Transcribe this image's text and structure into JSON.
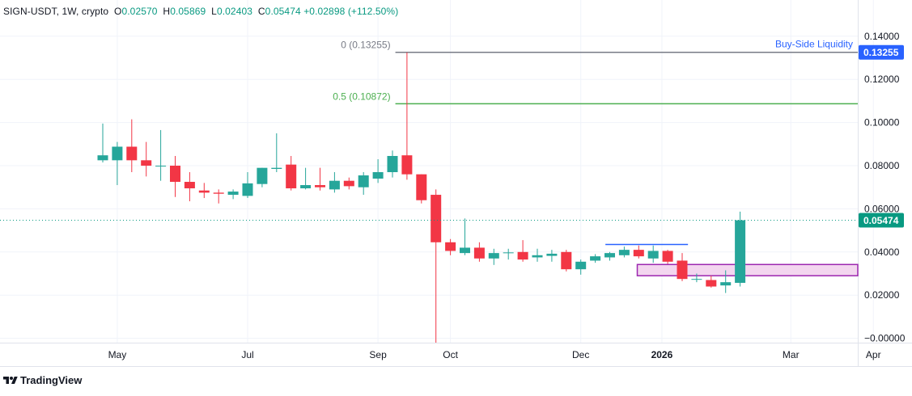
{
  "chart_data": {
    "type": "candlestick",
    "symbol": "SIGN-USDT",
    "interval": "1W",
    "source": "crypto",
    "ohlc_header": {
      "open_label": "O",
      "open": "0.02570",
      "high_label": "H",
      "high": "0.05869",
      "low_label": "L",
      "low": "0.02403",
      "close_label": "C",
      "close": "0.05474",
      "change": "+0.02898",
      "change_pct": "(+112.50%)"
    },
    "y_axis": {
      "ylim": [
        -0.009,
        0.142
      ],
      "ticks": [
        "0.14000",
        "0.12000",
        "0.10000",
        "0.08000",
        "0.06000",
        "0.04000",
        "0.02000",
        "−0.00000"
      ],
      "tick_values": [
        0.14,
        0.12,
        0.1,
        0.08,
        0.06,
        0.04,
        0.02,
        0.0
      ]
    },
    "x_axis": {
      "ticks": [
        {
          "label": "May",
          "week": 1,
          "bold": false
        },
        {
          "label": "Jul",
          "week": 10,
          "bold": false
        },
        {
          "label": "Sep",
          "week": 19,
          "bold": false
        },
        {
          "label": "Oct",
          "week": 24,
          "bold": false
        },
        {
          "label": "Dec",
          "week": 33,
          "bold": false
        },
        {
          "label": "2026",
          "week": 38.6,
          "bold": true
        },
        {
          "label": "Mar",
          "week": 47.5,
          "bold": false
        },
        {
          "label": "Apr",
          "week": 53.2,
          "bold": false
        }
      ]
    },
    "candles": [
      {
        "o": 0.0825,
        "h": 0.0995,
        "l": 0.0815,
        "c": 0.0848
      },
      {
        "o": 0.0825,
        "h": 0.091,
        "l": 0.071,
        "c": 0.0888
      },
      {
        "o": 0.0888,
        "h": 0.1015,
        "l": 0.077,
        "c": 0.0825
      },
      {
        "o": 0.0825,
        "h": 0.091,
        "l": 0.075,
        "c": 0.08
      },
      {
        "o": 0.08,
        "h": 0.0965,
        "l": 0.073,
        "c": 0.08
      },
      {
        "o": 0.08,
        "h": 0.0845,
        "l": 0.0655,
        "c": 0.0725
      },
      {
        "o": 0.0725,
        "h": 0.077,
        "l": 0.0635,
        "c": 0.0695
      },
      {
        "o": 0.0685,
        "h": 0.072,
        "l": 0.065,
        "c": 0.0675
      },
      {
        "o": 0.0675,
        "h": 0.069,
        "l": 0.0625,
        "c": 0.067
      },
      {
        "o": 0.0665,
        "h": 0.069,
        "l": 0.0645,
        "c": 0.068
      },
      {
        "o": 0.066,
        "h": 0.077,
        "l": 0.065,
        "c": 0.0718
      },
      {
        "o": 0.0715,
        "h": 0.079,
        "l": 0.07,
        "c": 0.079
      },
      {
        "o": 0.0785,
        "h": 0.095,
        "l": 0.077,
        "c": 0.079
      },
      {
        "o": 0.0805,
        "h": 0.0845,
        "l": 0.0685,
        "c": 0.0695
      },
      {
        "o": 0.0695,
        "h": 0.079,
        "l": 0.069,
        "c": 0.071
      },
      {
        "o": 0.071,
        "h": 0.079,
        "l": 0.0685,
        "c": 0.07
      },
      {
        "o": 0.069,
        "h": 0.077,
        "l": 0.0675,
        "c": 0.073
      },
      {
        "o": 0.073,
        "h": 0.0745,
        "l": 0.069,
        "c": 0.0705
      },
      {
        "o": 0.07,
        "h": 0.077,
        "l": 0.0665,
        "c": 0.0755
      },
      {
        "o": 0.074,
        "h": 0.083,
        "l": 0.072,
        "c": 0.077
      },
      {
        "o": 0.077,
        "h": 0.087,
        "l": 0.0745,
        "c": 0.0845
      },
      {
        "o": 0.0848,
        "h": 0.1325,
        "l": 0.0735,
        "c": 0.076
      },
      {
        "o": 0.076,
        "h": 0.076,
        "l": 0.0625,
        "c": 0.064
      },
      {
        "o": 0.0665,
        "h": 0.069,
        "l": -0.002,
        "c": 0.0445
      },
      {
        "o": 0.0445,
        "h": 0.046,
        "l": 0.0385,
        "c": 0.0405
      },
      {
        "o": 0.0395,
        "h": 0.0555,
        "l": 0.0385,
        "c": 0.042
      },
      {
        "o": 0.042,
        "h": 0.0445,
        "l": 0.0355,
        "c": 0.037
      },
      {
        "o": 0.037,
        "h": 0.0415,
        "l": 0.034,
        "c": 0.0395
      },
      {
        "o": 0.0395,
        "h": 0.0415,
        "l": 0.0365,
        "c": 0.0398
      },
      {
        "o": 0.04,
        "h": 0.0455,
        "l": 0.0355,
        "c": 0.0365
      },
      {
        "o": 0.0375,
        "h": 0.0415,
        "l": 0.0355,
        "c": 0.0385
      },
      {
        "o": 0.0382,
        "h": 0.041,
        "l": 0.0355,
        "c": 0.0392
      },
      {
        "o": 0.04,
        "h": 0.041,
        "l": 0.031,
        "c": 0.032
      },
      {
        "o": 0.032,
        "h": 0.0365,
        "l": 0.0295,
        "c": 0.0355
      },
      {
        "o": 0.036,
        "h": 0.039,
        "l": 0.035,
        "c": 0.038
      },
      {
        "o": 0.0375,
        "h": 0.04,
        "l": 0.036,
        "c": 0.0395
      },
      {
        "o": 0.0385,
        "h": 0.0425,
        "l": 0.0375,
        "c": 0.041
      },
      {
        "o": 0.041,
        "h": 0.043,
        "l": 0.037,
        "c": 0.038
      },
      {
        "o": 0.037,
        "h": 0.043,
        "l": 0.035,
        "c": 0.0405
      },
      {
        "o": 0.0405,
        "h": 0.041,
        "l": 0.0345,
        "c": 0.0355
      },
      {
        "o": 0.036,
        "h": 0.0395,
        "l": 0.0265,
        "c": 0.0275
      },
      {
        "o": 0.0275,
        "h": 0.03,
        "l": 0.026,
        "c": 0.0275
      },
      {
        "o": 0.027,
        "h": 0.029,
        "l": 0.0235,
        "c": 0.024
      },
      {
        "o": 0.0245,
        "h": 0.0315,
        "l": 0.021,
        "c": 0.026
      },
      {
        "o": 0.0257,
        "h": 0.0587,
        "l": 0.024,
        "c": 0.0547
      }
    ],
    "fib_levels": [
      {
        "label": "0 (0.13255)",
        "value": 0.13255,
        "color": "#787b86"
      },
      {
        "label": "0.5 (0.10872)",
        "value": 0.10872,
        "color": "#4caf50"
      }
    ],
    "annotations": {
      "buy_side_liquidity_label": "Buy-Side Liquidity",
      "buy_side_price": "0.13255",
      "current_price": "0.05474",
      "current_value": 0.05474,
      "liquidity_line_value": 0.0435,
      "zone_top": 0.0342,
      "zone_bottom": 0.029
    },
    "colors": {
      "up": "#26a69a",
      "down": "#f23645",
      "fib0": "#787b86",
      "fib05": "#4caf50",
      "buy_side": "#2962ff",
      "zone_stroke": "#9c27b0",
      "zone_fill": "#f3d6ef",
      "current": "#089981"
    }
  },
  "branding": {
    "name": "TradingView",
    "icon": "tradingview-logo-icon"
  }
}
